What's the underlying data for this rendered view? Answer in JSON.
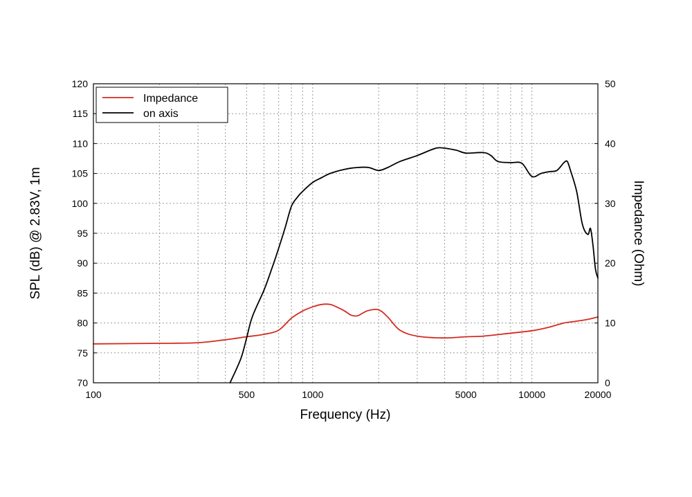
{
  "chart_data": {
    "type": "line",
    "title": "",
    "xlabel": "Frequency (Hz)",
    "ylabel": "SPL (dB) @ 2.83V, 1m",
    "y2label": "Impedance (Ohm)",
    "xscale": "log",
    "xlim": [
      100,
      20000
    ],
    "ylim": [
      70,
      120
    ],
    "y2lim": [
      0,
      50
    ],
    "x_tick_labels": [
      {
        "value": 100,
        "label": "100"
      },
      {
        "value": 500,
        "label": "500"
      },
      {
        "value": 1000,
        "label": "1000"
      },
      {
        "value": 5000,
        "label": "5000"
      },
      {
        "value": 10000,
        "label": "10000"
      },
      {
        "value": 20000,
        "label": "20000"
      }
    ],
    "x_gridlines": [
      200,
      300,
      400,
      500,
      600,
      700,
      800,
      900,
      1000,
      2000,
      3000,
      4000,
      5000,
      6000,
      7000,
      8000,
      9000,
      10000
    ],
    "y_ticks": [
      70,
      75,
      80,
      85,
      90,
      95,
      100,
      105,
      110,
      115,
      120
    ],
    "y2_ticks": [
      0,
      10,
      20,
      30,
      40,
      50
    ],
    "grid": true,
    "legend_position": "top-left",
    "series": [
      {
        "name": "Impedance",
        "axis": "right",
        "color": "#d42a20",
        "points": [
          [
            100,
            6.5
          ],
          [
            200,
            6.6
          ],
          [
            300,
            6.7
          ],
          [
            400,
            7.2
          ],
          [
            500,
            7.7
          ],
          [
            600,
            8.1
          ],
          [
            700,
            8.8
          ],
          [
            800,
            10.8
          ],
          [
            900,
            12.0
          ],
          [
            1000,
            12.7
          ],
          [
            1100,
            13.1
          ],
          [
            1200,
            13.1
          ],
          [
            1300,
            12.6
          ],
          [
            1400,
            12.0
          ],
          [
            1500,
            11.3
          ],
          [
            1600,
            11.2
          ],
          [
            1700,
            11.7
          ],
          [
            1800,
            12.1
          ],
          [
            2000,
            12.2
          ],
          [
            2200,
            11.0
          ],
          [
            2500,
            8.8
          ],
          [
            3000,
            7.8
          ],
          [
            4000,
            7.5
          ],
          [
            5000,
            7.7
          ],
          [
            6000,
            7.8
          ],
          [
            8000,
            8.3
          ],
          [
            10000,
            8.7
          ],
          [
            12000,
            9.3
          ],
          [
            14000,
            10.0
          ],
          [
            16000,
            10.3
          ],
          [
            18000,
            10.6
          ],
          [
            20000,
            11.0
          ]
        ]
      },
      {
        "name": "on axis",
        "axis": "left",
        "color": "#000000",
        "points": [
          [
            420,
            70.0
          ],
          [
            470,
            74.0
          ],
          [
            500,
            77.5
          ],
          [
            530,
            81.0
          ],
          [
            600,
            85.5
          ],
          [
            650,
            89.0
          ],
          [
            700,
            92.5
          ],
          [
            750,
            96.0
          ],
          [
            800,
            99.5
          ],
          [
            850,
            101.0
          ],
          [
            900,
            102.0
          ],
          [
            1000,
            103.5
          ],
          [
            1100,
            104.3
          ],
          [
            1200,
            105.0
          ],
          [
            1400,
            105.7
          ],
          [
            1600,
            106.0
          ],
          [
            1800,
            106.0
          ],
          [
            2000,
            105.5
          ],
          [
            2200,
            106.0
          ],
          [
            2500,
            107.0
          ],
          [
            3000,
            108.0
          ],
          [
            3500,
            109.0
          ],
          [
            3800,
            109.3
          ],
          [
            4500,
            108.9
          ],
          [
            5000,
            108.4
          ],
          [
            6000,
            108.5
          ],
          [
            6500,
            108.0
          ],
          [
            7000,
            107.0
          ],
          [
            8000,
            106.8
          ],
          [
            9000,
            106.7
          ],
          [
            10000,
            104.5
          ],
          [
            11000,
            105.0
          ],
          [
            12000,
            105.3
          ],
          [
            13000,
            105.5
          ],
          [
            14000,
            106.8
          ],
          [
            14500,
            107.0
          ],
          [
            15000,
            105.5
          ],
          [
            16000,
            102.0
          ],
          [
            17000,
            96.5
          ],
          [
            18000,
            94.8
          ],
          [
            18500,
            95.8
          ],
          [
            19000,
            93.0
          ],
          [
            19500,
            89.0
          ],
          [
            20000,
            87.5
          ]
        ]
      }
    ]
  }
}
